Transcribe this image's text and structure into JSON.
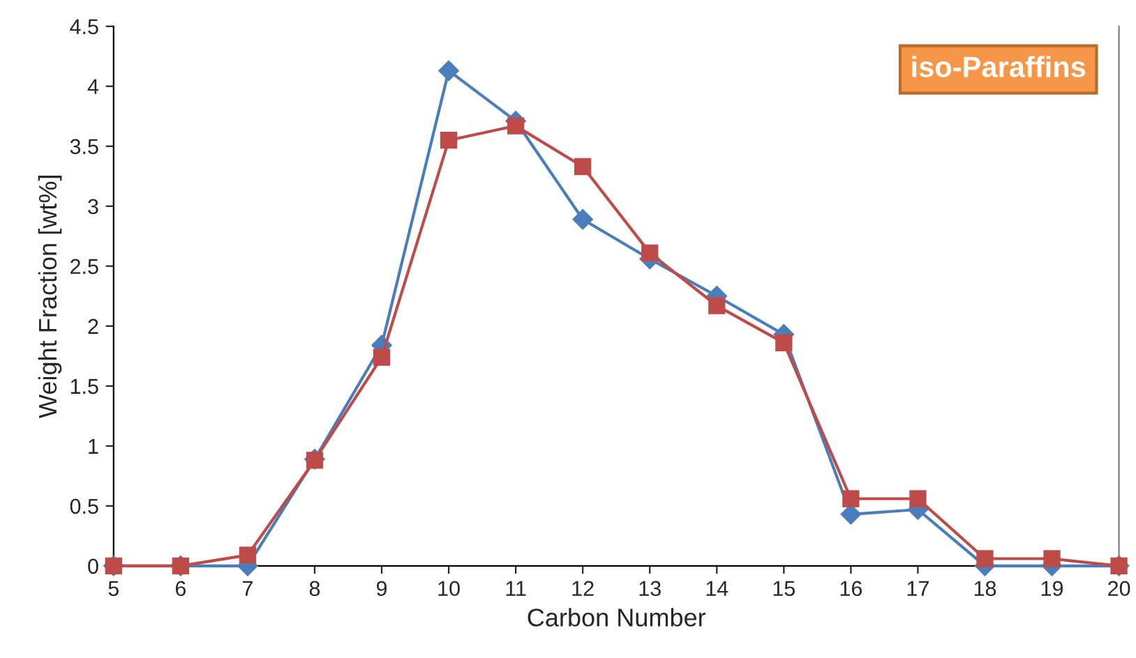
{
  "chart_data": {
    "type": "line",
    "xlabel": "Carbon Number",
    "ylabel": "Weight Fraction [wt%]",
    "annotations": [
      "iso-Paraffins"
    ],
    "x": [
      5,
      6,
      7,
      8,
      9,
      10,
      11,
      12,
      13,
      14,
      15,
      16,
      17,
      18,
      19,
      20
    ],
    "series": [
      {
        "color": "#4a7ebb",
        "marker": "diamond",
        "values": [
          0,
          0,
          0,
          0.89,
          1.84,
          4.13,
          3.71,
          2.89,
          2.56,
          2.25,
          1.93,
          0.43,
          0.47,
          0,
          0,
          0
        ]
      },
      {
        "color": "#be4b48",
        "marker": "square",
        "values": [
          0,
          0,
          0.09,
          0.88,
          1.74,
          3.55,
          3.67,
          3.33,
          2.61,
          2.17,
          1.86,
          0.56,
          0.56,
          0.06,
          0.06,
          0
        ]
      }
    ],
    "xlim": [
      5,
      20
    ],
    "xticks": [
      5,
      6,
      7,
      8,
      9,
      10,
      11,
      12,
      13,
      14,
      15,
      16,
      17,
      18,
      19,
      20
    ],
    "ylim": [
      0,
      4.5
    ],
    "yticks": [
      0,
      0.5,
      1,
      1.5,
      2,
      2.5,
      3,
      3.5,
      4,
      4.5
    ],
    "grid": false,
    "legend": false,
    "line_style": "solid"
  }
}
